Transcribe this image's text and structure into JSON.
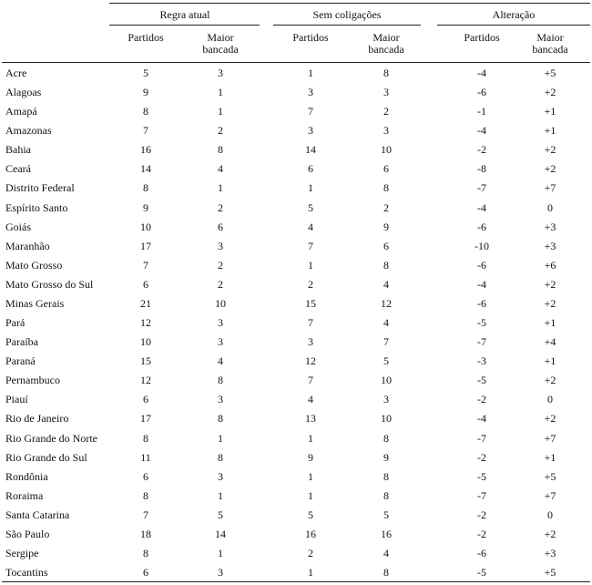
{
  "table": {
    "groups": [
      "Regra atual",
      "Sem coligações",
      "Alteração"
    ],
    "subheaders": [
      "Partidos",
      "Maior bancada",
      "Partidos",
      "Maior bancada",
      "Partidos",
      "Maior bancada"
    ],
    "rows": [
      [
        "Acre",
        "5",
        "3",
        "1",
        "8",
        "-4",
        "+5"
      ],
      [
        "Alagoas",
        "9",
        "1",
        "3",
        "3",
        "-6",
        "+2"
      ],
      [
        "Amapá",
        "8",
        "1",
        "7",
        "2",
        "-1",
        "+1"
      ],
      [
        "Amazonas",
        "7",
        "2",
        "3",
        "3",
        "-4",
        "+1"
      ],
      [
        "Bahia",
        "16",
        "8",
        "14",
        "10",
        "-2",
        "+2"
      ],
      [
        "Ceará",
        "14",
        "4",
        "6",
        "6",
        "-8",
        "+2"
      ],
      [
        "Distrito Federal",
        "8",
        "1",
        "1",
        "8",
        "-7",
        "+7"
      ],
      [
        "Espírito Santo",
        "9",
        "2",
        "5",
        "2",
        "-4",
        "0"
      ],
      [
        "Goiás",
        "10",
        "6",
        "4",
        "9",
        "-6",
        "+3"
      ],
      [
        "Maranhão",
        "17",
        "3",
        "7",
        "6",
        "-10",
        "+3"
      ],
      [
        "Mato Grosso",
        "7",
        "2",
        "1",
        "8",
        "-6",
        "+6"
      ],
      [
        "Mato Grosso do Sul",
        "6",
        "2",
        "2",
        "4",
        "-4",
        "+2"
      ],
      [
        "Minas Gerais",
        "21",
        "10",
        "15",
        "12",
        "-6",
        "+2"
      ],
      [
        "Pará",
        "12",
        "3",
        "7",
        "4",
        "-5",
        "+1"
      ],
      [
        "Paraíba",
        "10",
        "3",
        "3",
        "7",
        "-7",
        "+4"
      ],
      [
        "Paraná",
        "15",
        "4",
        "12",
        "5",
        "-3",
        "+1"
      ],
      [
        "Pernambuco",
        "12",
        "8",
        "7",
        "10",
        "-5",
        "+2"
      ],
      [
        "Piauí",
        "6",
        "3",
        "4",
        "3",
        "-2",
        "0"
      ],
      [
        "Rio de Janeiro",
        "17",
        "8",
        "13",
        "10",
        "-4",
        "+2"
      ],
      [
        "Rio Grande do Norte",
        "8",
        "1",
        "1",
        "8",
        "-7",
        "+7"
      ],
      [
        "Rio Grande do Sul",
        "11",
        "8",
        "9",
        "9",
        "-2",
        "+1"
      ],
      [
        "Rondônia",
        "6",
        "3",
        "1",
        "8",
        "-5",
        "+5"
      ],
      [
        "Roraima",
        "8",
        "1",
        "1",
        "8",
        "-7",
        "+7"
      ],
      [
        "Santa Catarina",
        "7",
        "5",
        "5",
        "5",
        "-2",
        "0"
      ],
      [
        "São Paulo",
        "18",
        "14",
        "16",
        "16",
        "-2",
        "+2"
      ],
      [
        "Sergipe",
        "8",
        "1",
        "2",
        "4",
        "-6",
        "+3"
      ],
      [
        "Tocantins",
        "6",
        "3",
        "1",
        "8",
        "-5",
        "+5"
      ]
    ]
  }
}
